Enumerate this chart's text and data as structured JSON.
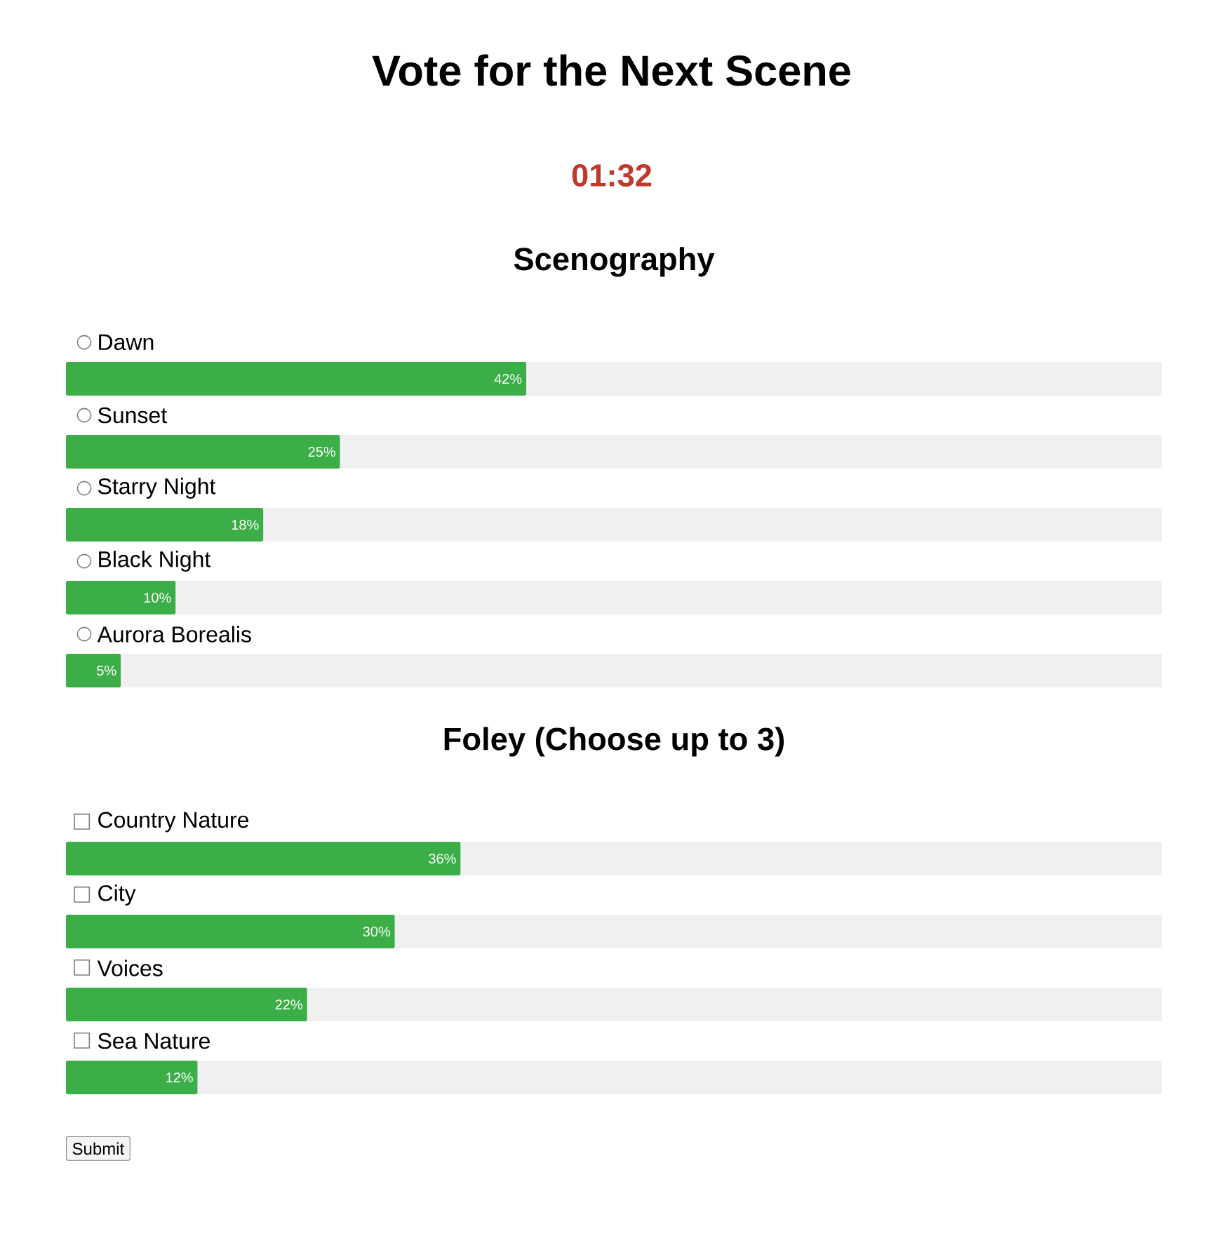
{
  "chart_data": [
    {
      "type": "other",
      "title": "Vote for the Next Scene",
      "subtitle": "01:32",
      "annotations": [
        "Submit"
      ]
    },
    {
      "type": "bar",
      "orientation": "horizontal",
      "title": "Scenography",
      "categories": [
        "Dawn",
        "Sunset",
        "Starry Night",
        "Black Night",
        "Aurora Borealis"
      ],
      "values": [
        42,
        25,
        18,
        10,
        5
      ],
      "value_labels": [
        "42%",
        "25%",
        "18%",
        "10%",
        "5%"
      ],
      "color": "#3cae48",
      "xlim": [
        0,
        100
      ]
    },
    {
      "type": "bar",
      "orientation": "horizontal",
      "title": "Foley (Choose up to 3)",
      "categories": [
        "Country Nature",
        "City",
        "Voices",
        "Sea Nature"
      ],
      "values": [
        36,
        30,
        22,
        12
      ],
      "value_labels": [
        "36%",
        "30%",
        "22%",
        "12%"
      ],
      "color": "#3cae48",
      "xlim": [
        0,
        100
      ]
    }
  ]
}
